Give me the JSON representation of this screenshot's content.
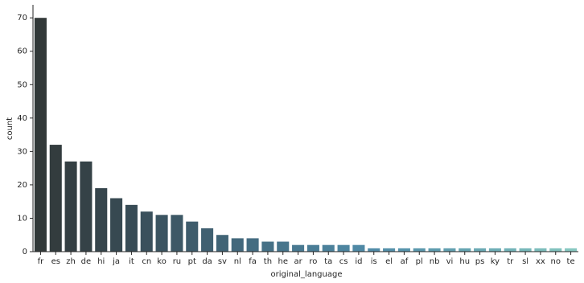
{
  "chart_data": {
    "type": "bar",
    "x_label": "original_language",
    "y_label": "count",
    "categories": [
      "fr",
      "es",
      "zh",
      "de",
      "hi",
      "ja",
      "it",
      "cn",
      "ko",
      "ru",
      "pt",
      "da",
      "sv",
      "nl",
      "fa",
      "th",
      "he",
      "ar",
      "ro",
      "ta",
      "cs",
      "id",
      "is",
      "el",
      "af",
      "pl",
      "nb",
      "vi",
      "hu",
      "ps",
      "ky",
      "tr",
      "sl",
      "xx",
      "no",
      "te"
    ],
    "values": [
      70,
      32,
      27,
      27,
      19,
      16,
      14,
      12,
      11,
      11,
      9,
      7,
      5,
      4,
      4,
      3,
      3,
      2,
      2,
      2,
      2,
      2,
      1,
      1,
      1,
      1,
      1,
      1,
      1,
      1,
      1,
      1,
      1,
      1,
      1,
      1
    ],
    "colors": [
      "#323939",
      "#333c3e",
      "#343f43",
      "#354247",
      "#36454c",
      "#374951",
      "#384c56",
      "#3a505c",
      "#3b5461",
      "#3d5866",
      "#3e5c6c",
      "#406071",
      "#416476",
      "#43687c",
      "#446c81",
      "#467186",
      "#47758c",
      "#497991",
      "#4a7d96",
      "#4c819b",
      "#4d85a0",
      "#4f89a5",
      "#518ca8",
      "#5490aa",
      "#5794ac",
      "#5a98ad",
      "#5e9caf",
      "#62a0b0",
      "#66a5b2",
      "#6aa9b4",
      "#6eaeb6",
      "#72b3b8",
      "#77b8ba",
      "#7cbdbc",
      "#81c2be",
      "#87c8c1"
    ],
    "ylim": [
      0,
      73.9
    ],
    "yticks": [
      0,
      10,
      20,
      30,
      40,
      50,
      60,
      70
    ]
  }
}
